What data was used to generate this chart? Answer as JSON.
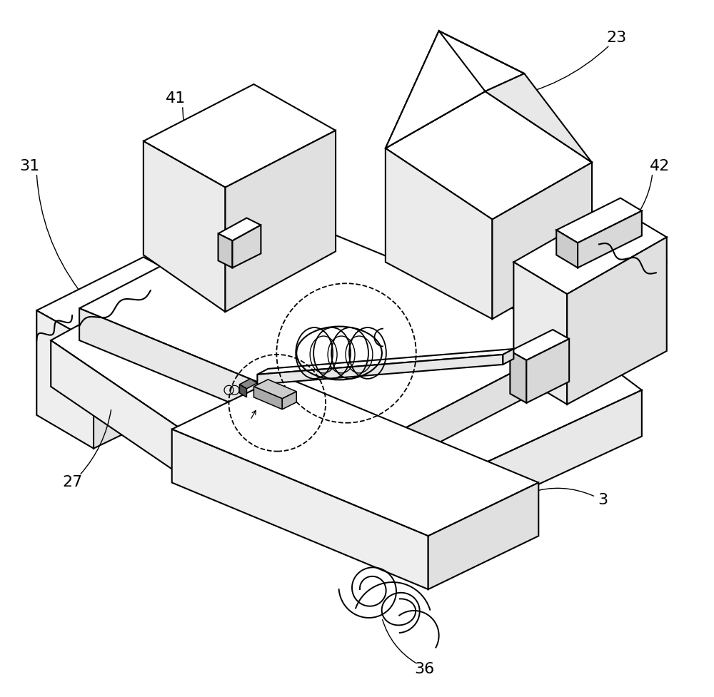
{
  "background": "#ffffff",
  "line_color": "#000000",
  "line_width": 1.5,
  "label_fontsize": 16
}
